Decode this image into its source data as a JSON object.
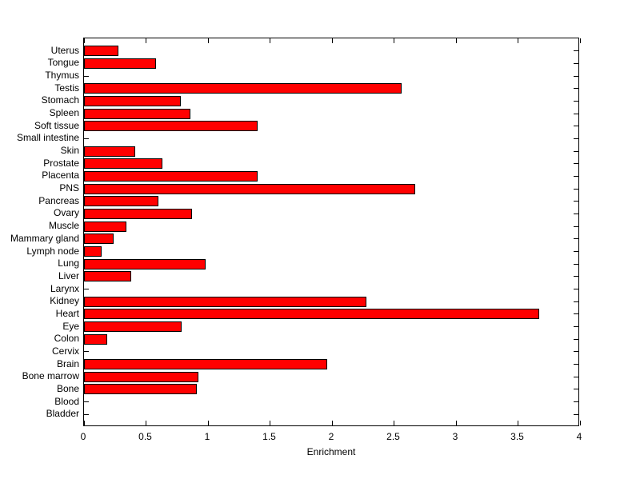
{
  "figure": {
    "background_color": "#FFFFFF",
    "axis_color": "#000000",
    "text_color": "#000000"
  },
  "chart_data": {
    "type": "bar",
    "orientation": "horizontal",
    "title": "",
    "xlabel": "Enrichment",
    "ylabel": "",
    "xlim": [
      0,
      4
    ],
    "grid": false,
    "legend": "none",
    "bar_color": "#FF0000",
    "bar_edge_color": "#000000",
    "x_ticks": [
      0,
      0.5,
      1,
      1.5,
      2,
      2.5,
      3,
      3.5,
      4
    ],
    "x_tick_labels": [
      "0",
      "0.5",
      "1",
      "1.5",
      "2",
      "2.5",
      "3",
      "3.5",
      "4"
    ],
    "categories": [
      "Uterus",
      "Tongue",
      "Thymus",
      "Testis",
      "Stomach",
      "Spleen",
      "Soft tissue",
      "Small intestine",
      "Skin",
      "Prostate",
      "Placenta",
      "PNS",
      "Pancreas",
      "Ovary",
      "Muscle",
      "Mammary gland",
      "Lymph node",
      "Lung",
      "Liver",
      "Larynx",
      "Kidney",
      "Heart",
      "Eye",
      "Colon",
      "Cervix",
      "Brain",
      "Bone marrow",
      "Bone",
      "Blood",
      "Bladder"
    ],
    "values": [
      0.28,
      0.58,
      0,
      2.56,
      0.78,
      0.86,
      1.4,
      0,
      0.41,
      0.63,
      1.4,
      2.67,
      0.6,
      0.87,
      0.34,
      0.24,
      0.14,
      0.98,
      0.38,
      0,
      2.28,
      3.67,
      0.79,
      0.19,
      0,
      1.96,
      0.92,
      0.91,
      0,
      0
    ]
  }
}
